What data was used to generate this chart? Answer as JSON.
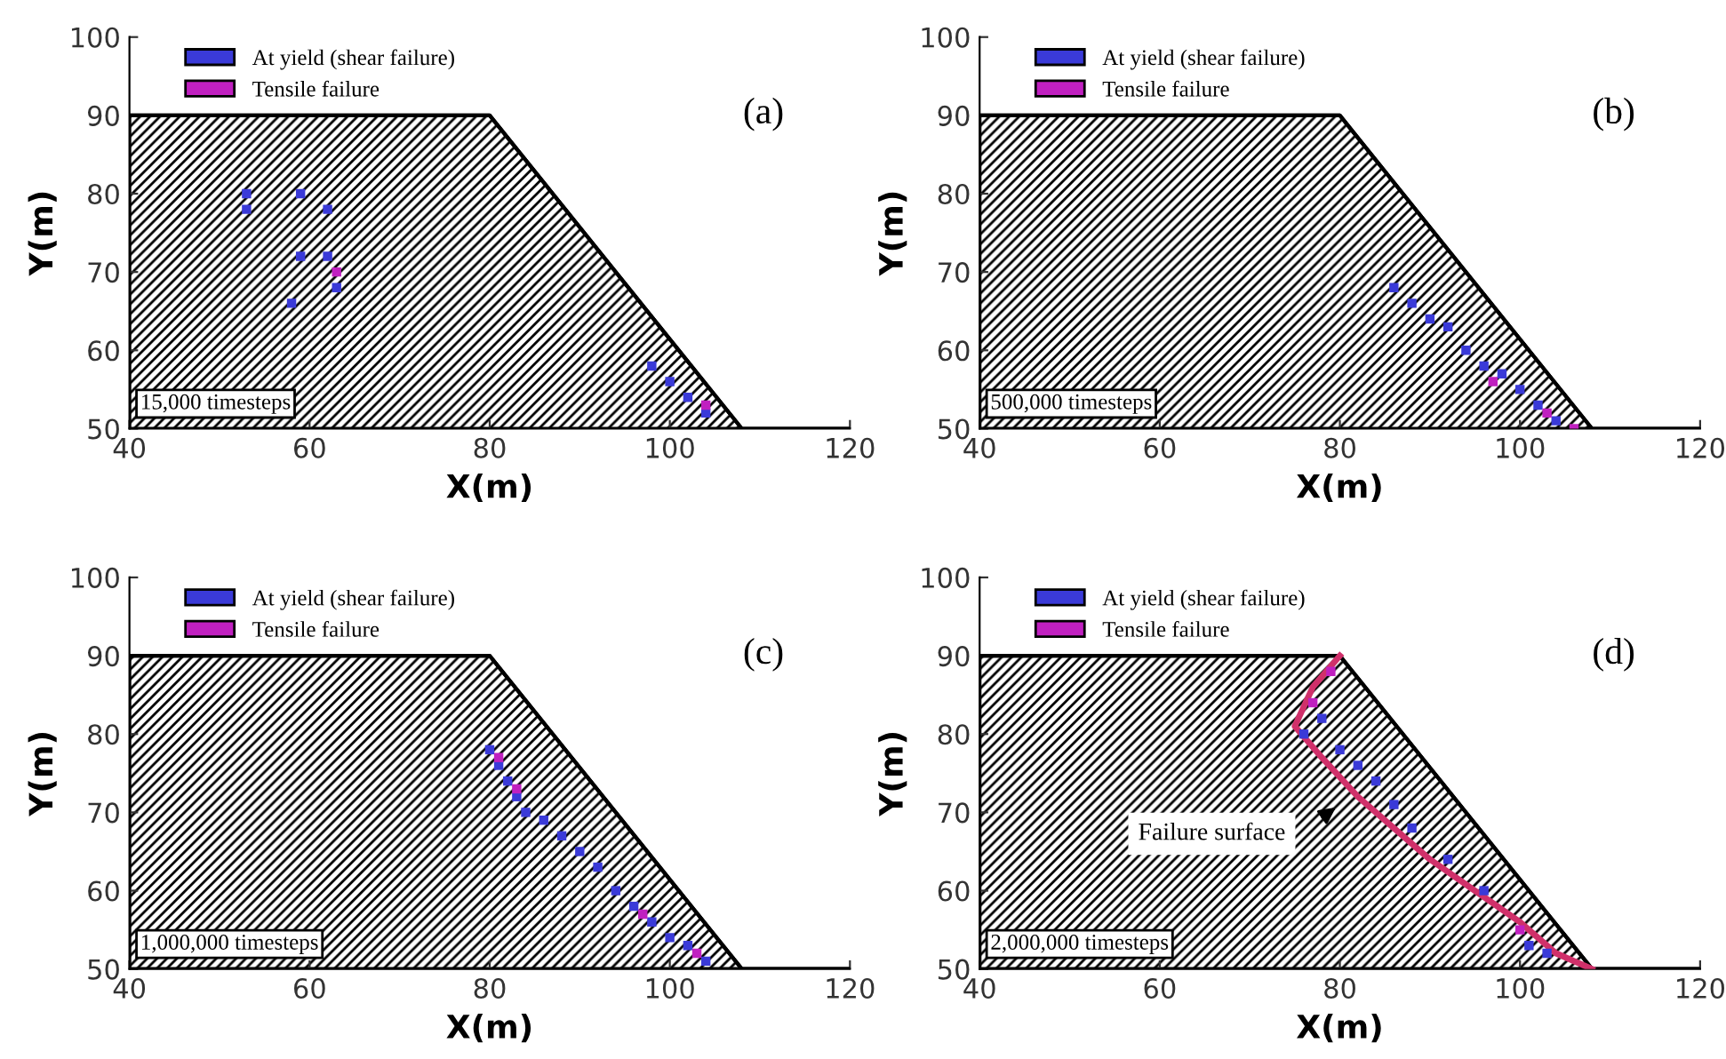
{
  "chart_data": [
    {
      "type": "scatter",
      "xlabel": "X(m)",
      "ylabel": "Y(m)",
      "xlim": [
        40,
        120
      ],
      "ylim": [
        50,
        100
      ],
      "xticks": [
        40,
        60,
        80,
        100,
        120
      ],
      "yticks": [
        50,
        60,
        70,
        80,
        90,
        100
      ],
      "grid": false,
      "legend": "top left",
      "annotations": [
        "(a)",
        "15,000 timesteps"
      ],
      "series": [
        {
          "type": "area",
          "color": "#000000",
          "x": [
            40,
            80,
            108,
            120
          ],
          "values": [
            90,
            90,
            50,
            50
          ]
        },
        {
          "name": "At yield (shear failure)",
          "marker": "square",
          "color": "#3a3ad8",
          "x": [
            53,
            53,
            58,
            59,
            59,
            62,
            62,
            63,
            98,
            100,
            102,
            104
          ],
          "values": [
            78,
            80,
            66,
            72,
            80,
            72,
            78,
            68,
            58,
            56,
            54,
            52
          ]
        },
        {
          "name": "Tensile failure",
          "marker": "square",
          "color": "#c020c0",
          "x": [
            63,
            104
          ],
          "values": [
            70,
            53
          ]
        }
      ]
    },
    {
      "type": "scatter",
      "xlabel": "X(m)",
      "ylabel": "Y(m)",
      "xlim": [
        40,
        120
      ],
      "ylim": [
        50,
        100
      ],
      "xticks": [
        40,
        60,
        80,
        100,
        120
      ],
      "yticks": [
        50,
        60,
        70,
        80,
        90,
        100
      ],
      "grid": false,
      "legend": "top left",
      "annotations": [
        "(b)",
        "500,000 timesteps"
      ],
      "series": [
        {
          "type": "area",
          "color": "#000000",
          "x": [
            40,
            80,
            108,
            120
          ],
          "values": [
            90,
            90,
            50,
            50
          ]
        },
        {
          "name": "At yield (shear failure)",
          "marker": "square",
          "color": "#3a3ad8",
          "x": [
            86,
            88,
            90,
            92,
            94,
            96,
            98,
            100,
            102,
            104
          ],
          "values": [
            68,
            66,
            64,
            63,
            60,
            58,
            57,
            55,
            53,
            51
          ]
        },
        {
          "name": "Tensile failure",
          "marker": "square",
          "color": "#c020c0",
          "x": [
            97,
            103,
            106
          ],
          "values": [
            56,
            52,
            50
          ]
        }
      ]
    },
    {
      "type": "scatter",
      "xlabel": "X(m)",
      "ylabel": "Y(m)",
      "xlim": [
        40,
        120
      ],
      "ylim": [
        50,
        100
      ],
      "xticks": [
        40,
        60,
        80,
        100,
        120
      ],
      "yticks": [
        50,
        60,
        70,
        80,
        90,
        100
      ],
      "grid": false,
      "legend": "top left",
      "annotations": [
        "(c)",
        "1,000,000 timesteps"
      ],
      "series": [
        {
          "type": "area",
          "color": "#000000",
          "x": [
            40,
            80,
            108,
            120
          ],
          "values": [
            90,
            90,
            50,
            50
          ]
        },
        {
          "name": "At yield (shear failure)",
          "marker": "square",
          "color": "#3a3ad8",
          "x": [
            80,
            81,
            82,
            83,
            84,
            86,
            88,
            90,
            92,
            94,
            96,
            98,
            100,
            102,
            104
          ],
          "values": [
            78,
            76,
            74,
            72,
            70,
            69,
            67,
            65,
            63,
            60,
            58,
            56,
            54,
            53,
            51
          ]
        },
        {
          "name": "Tensile failure",
          "marker": "square",
          "color": "#c020c0",
          "x": [
            81,
            83,
            97,
            103
          ],
          "values": [
            77,
            73,
            57,
            52
          ]
        }
      ]
    },
    {
      "type": "scatter",
      "xlabel": "X(m)",
      "ylabel": "Y(m)",
      "xlim": [
        40,
        120
      ],
      "ylim": [
        50,
        100
      ],
      "xticks": [
        40,
        60,
        80,
        100,
        120
      ],
      "yticks": [
        50,
        60,
        70,
        80,
        90,
        100
      ],
      "grid": false,
      "legend": "top left",
      "annotations": [
        "(d)",
        "2,000,000 timesteps",
        "Failure surface"
      ],
      "series": [
        {
          "type": "area",
          "color": "#000000",
          "x": [
            40,
            80,
            108,
            120
          ],
          "values": [
            90,
            90,
            50,
            50
          ]
        },
        {
          "type": "line",
          "color": "#d0306a",
          "x": [
            80,
            77,
            75,
            78,
            82,
            86,
            90,
            95,
            100,
            104,
            108
          ],
          "values": [
            90,
            86,
            81,
            77,
            72,
            68,
            64,
            60,
            56,
            52,
            50
          ]
        },
        {
          "name": "At yield (shear failure)",
          "marker": "square",
          "color": "#3a3ad8",
          "x": [
            76,
            78,
            80,
            82,
            84,
            86,
            88,
            92,
            96,
            101,
            103
          ],
          "values": [
            80,
            82,
            78,
            76,
            74,
            71,
            68,
            64,
            60,
            53,
            52
          ]
        },
        {
          "name": "Tensile failure",
          "marker": "square",
          "color": "#c020c0",
          "x": [
            77,
            79,
            100
          ],
          "values": [
            84,
            88,
            55
          ]
        }
      ]
    }
  ]
}
